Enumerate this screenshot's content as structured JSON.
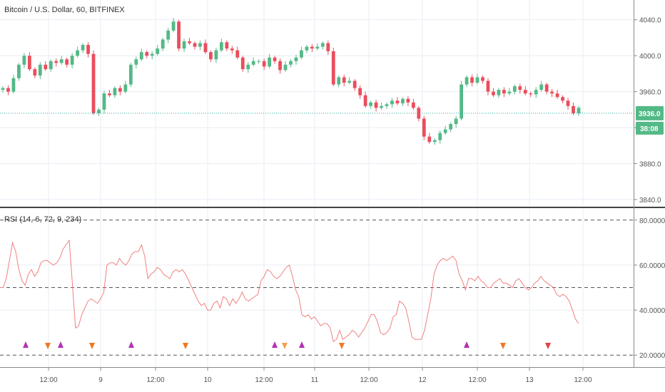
{
  "chart_data": [
    {
      "type": "candlestick",
      "title": "Bitcoin / U.S. Dollar, 60, BITFINEX",
      "ylim": [
        3832,
        4062
      ],
      "ticks": [
        3840,
        3880,
        3920,
        3960,
        4000,
        4040
      ],
      "tick_labels": [
        "3840.0",
        "3880.0",
        "3920.0",
        "3960.0",
        "4000.0",
        "4040.0"
      ],
      "x_labels": [
        "12:00",
        "9",
        "12:00",
        "10",
        "12:00",
        "11",
        "12:00",
        "12",
        "12:00",
        "13",
        "12:00"
      ],
      "last_price": 3936.0,
      "last_price_label": "3936.0",
      "countdown_label": "38:08",
      "up_color": "#53b987",
      "down_color": "#eb4d5c",
      "closes": [
        3964,
        3960,
        3975,
        3990,
        4000,
        3985,
        3978,
        3990,
        3985,
        3994,
        3992,
        3996,
        3990,
        4000,
        4006,
        4012,
        4002,
        3936,
        3940,
        3958,
        3956,
        3964,
        3960,
        3968,
        3990,
        3996,
        4004,
        4000,
        4002,
        4008,
        4018,
        4028,
        4038,
        4008,
        4016,
        4014,
        4010,
        4014,
        4004,
        3996,
        4006,
        4015,
        4008,
        4006,
        3998,
        3985,
        3990,
        3994,
        3994,
        3988,
        3998,
        3994,
        3984,
        3990,
        3994,
        3998,
        4006,
        4010,
        4008,
        4010,
        4014,
        4005,
        3968,
        3976,
        3970,
        3972,
        3964,
        3956,
        3944,
        3948,
        3942,
        3944,
        3946,
        3950,
        3947,
        3952,
        3948,
        3942,
        3930,
        3910,
        3904,
        3906,
        3914,
        3918,
        3924,
        3930,
        3968,
        3976,
        3970,
        3976,
        3972,
        3960,
        3956,
        3962,
        3958,
        3960,
        3966,
        3962,
        3958,
        3957,
        3962,
        3968,
        3960,
        3958,
        3954,
        3950,
        3944,
        3936,
        3942
      ]
    },
    {
      "type": "line",
      "title": "RSI (14, 6, 72, 9, 234)",
      "ylim": [
        15,
        85
      ],
      "ticks": [
        20,
        40,
        60,
        80
      ],
      "tick_labels": [
        "20.0000",
        "40.0000",
        "60.0000",
        "80.0000"
      ],
      "levels": [
        20,
        50,
        80
      ],
      "line_color": "#f08080",
      "values": [
        50,
        50,
        54,
        62,
        70,
        66,
        58,
        53,
        51,
        56,
        58,
        55,
        57,
        61,
        62,
        62,
        61,
        60,
        61,
        63,
        67,
        69,
        71,
        52,
        32,
        33,
        38,
        41,
        44,
        45,
        44,
        43,
        45,
        48,
        60,
        61,
        61,
        60,
        63,
        61,
        60,
        62,
        65,
        66,
        66,
        69,
        64,
        54,
        56,
        57,
        59,
        58,
        56,
        55,
        54,
        57,
        58,
        57,
        58,
        56,
        53,
        50,
        47,
        44,
        42,
        43,
        40,
        40,
        43,
        44,
        41,
        46,
        45,
        42,
        45,
        43,
        45,
        48,
        45,
        44,
        45,
        46,
        47,
        53,
        55,
        58,
        57,
        55,
        54,
        55,
        57,
        59,
        60,
        55,
        49,
        46,
        38,
        37,
        38,
        36,
        37,
        35,
        33,
        34,
        34,
        32,
        26,
        27,
        31,
        27,
        28,
        29,
        31,
        30,
        28,
        30,
        32,
        35,
        38,
        38,
        35,
        30,
        29,
        30,
        32,
        37,
        38,
        44,
        43,
        41,
        35,
        28,
        27,
        27,
        27,
        31,
        38,
        45,
        56,
        60,
        62,
        63,
        62,
        63,
        64,
        62,
        56,
        53,
        49,
        54,
        54,
        53,
        55,
        53,
        52,
        50,
        50,
        52,
        53,
        54,
        52,
        52,
        51,
        50,
        53,
        54,
        52,
        50,
        49,
        50,
        52,
        53,
        55,
        53,
        52,
        51,
        50,
        47,
        46,
        47,
        46,
        44,
        40,
        36,
        34
      ],
      "markers": [
        {
          "x": 36,
          "dir": "up",
          "color": "#b430b4"
        },
        {
          "x": 67,
          "dir": "down",
          "color": "#f07820"
        },
        {
          "x": 85,
          "dir": "up",
          "color": "#b430b4"
        },
        {
          "x": 129,
          "dir": "down",
          "color": "#f07820"
        },
        {
          "x": 184,
          "dir": "up",
          "color": "#b430b4"
        },
        {
          "x": 260,
          "dir": "down",
          "color": "#f07820"
        },
        {
          "x": 385,
          "dir": "up",
          "color": "#b430b4"
        },
        {
          "x": 399,
          "dir": "down",
          "color": "#f5a050"
        },
        {
          "x": 423,
          "dir": "up",
          "color": "#b430b4"
        },
        {
          "x": 479,
          "dir": "down",
          "color": "#f07820"
        },
        {
          "x": 654,
          "dir": "up",
          "color": "#b430b4"
        },
        {
          "x": 705,
          "dir": "down",
          "color": "#f07820"
        },
        {
          "x": 768,
          "dir": "down",
          "color": "#e84040"
        }
      ]
    }
  ]
}
